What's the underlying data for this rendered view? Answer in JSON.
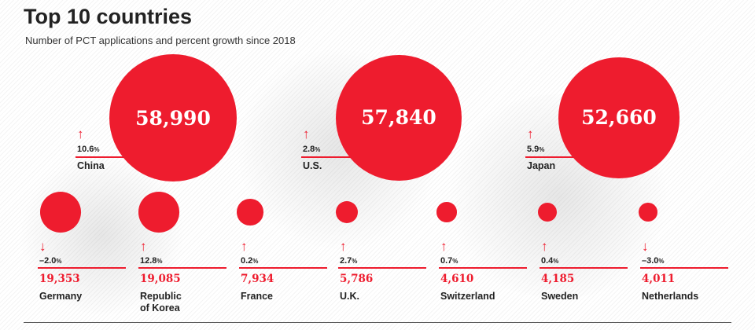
{
  "header": {
    "title": "Top 10 countries",
    "subtitle": "Number of PCT applications and percent growth since 2018"
  },
  "colors": {
    "accent": "#ee1c2e",
    "text": "#222222"
  },
  "chart_data": {
    "type": "bubble",
    "title": "Top 10 countries",
    "subtitle": "Number of PCT applications and percent growth since 2018",
    "series_name": "PCT applications",
    "countries": [
      {
        "name": "China",
        "applications": 58990,
        "label": "58,990",
        "growth": "10.6",
        "direction": "up"
      },
      {
        "name": "U.S.",
        "applications": 57840,
        "label": "57,840",
        "growth": "2.8",
        "direction": "up"
      },
      {
        "name": "Japan",
        "applications": 52660,
        "label": "52,660",
        "growth": "5.9",
        "direction": "up"
      },
      {
        "name": "Germany",
        "applications": 19353,
        "label": "19,353",
        "growth": "–2.0",
        "direction": "down"
      },
      {
        "name": "Republic\nof Korea",
        "applications": 19085,
        "label": "19,085",
        "growth": "12.8",
        "direction": "up"
      },
      {
        "name": "France",
        "applications": 7934,
        "label": "7,934",
        "growth": "0.2",
        "direction": "up"
      },
      {
        "name": "U.K.",
        "applications": 5786,
        "label": "5,786",
        "growth": "2.7",
        "direction": "up"
      },
      {
        "name": "Switzerland",
        "applications": 4610,
        "label": "4,610",
        "growth": "0.7",
        "direction": "up"
      },
      {
        "name": "Sweden",
        "applications": 4185,
        "label": "4,185",
        "growth": "0.4",
        "direction": "up"
      },
      {
        "name": "Netherlands",
        "applications": 4011,
        "label": "4,011",
        "growth": "–3.0",
        "direction": "down"
      }
    ],
    "growth_unit": "%"
  }
}
